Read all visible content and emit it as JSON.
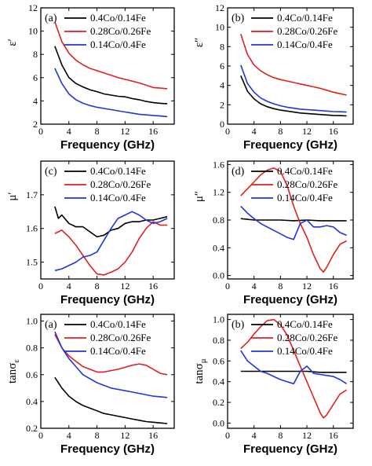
{
  "figure": {
    "colors": {
      "black": "#000000",
      "red": "#e02020",
      "blue": "#2036d8"
    }
  },
  "chart_data": [
    {
      "id": "eps_real",
      "type": "line",
      "panel_label": "(a)",
      "xlabel": "Frequency (GHz)",
      "ylabel": "ε′",
      "xlim": [
        0,
        19
      ],
      "ylim": [
        2,
        12
      ],
      "xticks": [
        0,
        4,
        8,
        12,
        16
      ],
      "yticks": [
        2,
        4,
        6,
        8,
        10,
        12
      ],
      "grid": false,
      "legend_position": "top",
      "series": [
        {
          "name": "0.4Co/0.14Fe",
          "color": "#000000",
          "x": [
            2,
            3,
            4,
            5,
            6,
            7,
            8,
            9,
            10,
            11,
            12,
            13,
            14,
            15,
            16,
            17,
            18
          ],
          "y": [
            8.7,
            7.1,
            6.0,
            5.5,
            5.2,
            4.95,
            4.8,
            4.6,
            4.5,
            4.4,
            4.35,
            4.2,
            4.1,
            3.95,
            3.85,
            3.8,
            3.75
          ]
        },
        {
          "name": "0.28Co/0.26Fe",
          "color": "#e02020",
          "x": [
            2,
            3,
            4,
            5,
            6,
            7,
            8,
            9,
            10,
            11,
            12,
            13,
            14,
            15,
            16,
            17,
            18
          ],
          "y": [
            10.8,
            9.1,
            8.1,
            7.5,
            7.1,
            6.8,
            6.6,
            6.4,
            6.2,
            6.0,
            5.85,
            5.7,
            5.55,
            5.35,
            5.15,
            5.1,
            5.05
          ]
        },
        {
          "name": "0.14Co/0.4Fe",
          "color": "#2036d8",
          "x": [
            2,
            3,
            4,
            5,
            6,
            7,
            8,
            9,
            10,
            11,
            12,
            13,
            14,
            15,
            16,
            17,
            18
          ],
          "y": [
            6.8,
            5.5,
            4.6,
            4.1,
            3.8,
            3.6,
            3.45,
            3.35,
            3.25,
            3.15,
            3.05,
            2.95,
            2.85,
            2.8,
            2.75,
            2.7,
            2.65
          ]
        }
      ]
    },
    {
      "id": "eps_imag",
      "type": "line",
      "panel_label": "(b)",
      "xlabel": "Frequency (GHz)",
      "ylabel": "ε″",
      "xlim": [
        0,
        19
      ],
      "ylim": [
        0,
        12
      ],
      "xticks": [
        0,
        4,
        8,
        12,
        16
      ],
      "yticks": [
        0,
        2,
        4,
        6,
        8,
        10,
        12
      ],
      "grid": false,
      "legend_position": "top",
      "series": [
        {
          "name": "0.4Co/0.14Fe",
          "color": "#000000",
          "x": [
            2,
            3,
            4,
            5,
            6,
            7,
            8,
            9,
            10,
            11,
            12,
            13,
            14,
            15,
            16,
            17,
            18
          ],
          "y": [
            5.0,
            3.4,
            2.6,
            2.1,
            1.8,
            1.6,
            1.45,
            1.35,
            1.25,
            1.15,
            1.1,
            1.05,
            1.0,
            0.95,
            0.9,
            0.88,
            0.85
          ]
        },
        {
          "name": "0.28Co/0.26Fe",
          "color": "#e02020",
          "x": [
            2,
            3,
            4,
            5,
            6,
            7,
            8,
            9,
            10,
            11,
            12,
            13,
            14,
            15,
            16,
            17,
            18
          ],
          "y": [
            9.3,
            7.2,
            6.1,
            5.5,
            5.1,
            4.8,
            4.6,
            4.45,
            4.3,
            4.15,
            4.0,
            3.85,
            3.7,
            3.5,
            3.3,
            3.15,
            3.0
          ]
        },
        {
          "name": "0.14Co/0.4Fe",
          "color": "#2036d8",
          "x": [
            2,
            3,
            4,
            5,
            6,
            7,
            8,
            9,
            10,
            11,
            12,
            13,
            14,
            15,
            16,
            17,
            18
          ],
          "y": [
            6.1,
            4.2,
            3.3,
            2.7,
            2.35,
            2.1,
            1.9,
            1.75,
            1.65,
            1.55,
            1.5,
            1.45,
            1.4,
            1.35,
            1.3,
            1.28,
            1.25
          ]
        }
      ]
    },
    {
      "id": "mu_real",
      "type": "line",
      "panel_label": "(c)",
      "xlabel": "Frequency (GHz)",
      "ylabel": "μ′",
      "xlim": [
        0,
        19
      ],
      "ylim": [
        1.45,
        1.8
      ],
      "xticks": [
        0,
        4,
        8,
        12,
        16
      ],
      "yticks": [
        1.5,
        1.6,
        1.7
      ],
      "grid": false,
      "legend_position": "top",
      "series": [
        {
          "name": "0.4Co/0.14Fe",
          "color": "#000000",
          "x": [
            2,
            2.5,
            3,
            4,
            5,
            6,
            7,
            8,
            9,
            10,
            11,
            12,
            13,
            14,
            15,
            16,
            17,
            18
          ],
          "y": [
            1.665,
            1.63,
            1.64,
            1.615,
            1.605,
            1.605,
            1.59,
            1.575,
            1.58,
            1.595,
            1.6,
            1.615,
            1.62,
            1.62,
            1.625,
            1.625,
            1.63,
            1.635
          ]
        },
        {
          "name": "0.28Co/0.26Fe",
          "color": "#e02020",
          "x": [
            2,
            3,
            4,
            5,
            6,
            7,
            8,
            9,
            10,
            11,
            12,
            13,
            14,
            15,
            16,
            17,
            18
          ],
          "y": [
            1.585,
            1.595,
            1.575,
            1.55,
            1.52,
            1.49,
            1.465,
            1.462,
            1.47,
            1.48,
            1.5,
            1.53,
            1.57,
            1.6,
            1.62,
            1.61,
            1.61
          ]
        },
        {
          "name": "0.14Co/0.4Fe",
          "color": "#2036d8",
          "x": [
            2,
            3,
            4,
            5,
            6,
            7,
            8,
            9,
            10,
            11,
            12,
            13,
            14,
            15,
            16,
            17,
            18
          ],
          "y": [
            1.475,
            1.48,
            1.49,
            1.5,
            1.515,
            1.52,
            1.53,
            1.565,
            1.6,
            1.63,
            1.64,
            1.65,
            1.64,
            1.625,
            1.615,
            1.62,
            1.63
          ]
        }
      ]
    },
    {
      "id": "mu_imag",
      "type": "line",
      "panel_label": "(d)",
      "xlabel": "Frequency (GHz)",
      "ylabel": "μ″",
      "xlim": [
        0,
        19
      ],
      "ylim": [
        -0.05,
        1.65
      ],
      "xticks": [
        0,
        4,
        8,
        12,
        16
      ],
      "yticks": [
        0.0,
        0.4,
        0.8,
        1.2,
        1.6
      ],
      "grid": false,
      "legend_position": "top",
      "series": [
        {
          "name": "0.4Co/0.14Fe",
          "color": "#000000",
          "x": [
            2,
            4,
            6,
            8,
            10,
            12,
            14,
            16,
            18
          ],
          "y": [
            0.82,
            0.8,
            0.8,
            0.8,
            0.79,
            0.8,
            0.79,
            0.79,
            0.79
          ]
        },
        {
          "name": "0.28Co/0.26Fe",
          "color": "#e02020",
          "x": [
            2,
            3,
            4,
            5,
            6,
            7,
            8,
            9,
            10,
            11,
            12,
            13,
            14,
            14.5,
            15,
            16,
            17,
            18
          ],
          "y": [
            1.15,
            1.25,
            1.35,
            1.45,
            1.52,
            1.55,
            1.5,
            1.3,
            1.0,
            0.75,
            0.55,
            0.3,
            0.1,
            0.05,
            0.12,
            0.3,
            0.45,
            0.5
          ]
        },
        {
          "name": "0.14Co/0.4Fe",
          "color": "#2036d8",
          "x": [
            2,
            3,
            4,
            5,
            6,
            7,
            8,
            9,
            10,
            11,
            12,
            13,
            14,
            15,
            16,
            17,
            18
          ],
          "y": [
            1.0,
            0.9,
            0.82,
            0.75,
            0.7,
            0.65,
            0.6,
            0.55,
            0.52,
            0.75,
            0.8,
            0.7,
            0.7,
            0.72,
            0.7,
            0.62,
            0.58
          ]
        }
      ]
    },
    {
      "id": "tan_eps",
      "type": "line",
      "panel_label": "(a)",
      "xlabel": "Frequency (GHz)",
      "ylabel": "tanσε",
      "ylabel_main": "tanσ",
      "ylabel_sub": "ε",
      "xlim": [
        0,
        19
      ],
      "ylim": [
        0.2,
        1.05
      ],
      "xticks": [
        0,
        4,
        8,
        12,
        16
      ],
      "yticks": [
        0.2,
        0.4,
        0.6,
        0.8,
        1.0
      ],
      "grid": false,
      "legend_position": "top",
      "series": [
        {
          "name": "0.4Co/0.14Fe",
          "color": "#000000",
          "x": [
            2,
            3,
            4,
            5,
            6,
            7,
            8,
            9,
            10,
            11,
            12,
            13,
            14,
            15,
            16,
            17,
            18
          ],
          "y": [
            0.58,
            0.5,
            0.44,
            0.4,
            0.37,
            0.35,
            0.33,
            0.31,
            0.3,
            0.29,
            0.28,
            0.27,
            0.26,
            0.25,
            0.245,
            0.24,
            0.235
          ]
        },
        {
          "name": "0.28Co/0.26Fe",
          "color": "#e02020",
          "x": [
            2,
            3,
            4,
            5,
            6,
            7,
            8,
            9,
            10,
            11,
            12,
            13,
            14,
            15,
            16,
            17,
            18
          ],
          "y": [
            0.9,
            0.8,
            0.74,
            0.7,
            0.66,
            0.64,
            0.62,
            0.62,
            0.63,
            0.64,
            0.655,
            0.67,
            0.68,
            0.67,
            0.64,
            0.61,
            0.6
          ]
        },
        {
          "name": "0.14Co/0.4Fe",
          "color": "#2036d8",
          "x": [
            2,
            3,
            4,
            5,
            6,
            7,
            8,
            9,
            10,
            11,
            12,
            13,
            14,
            15,
            16,
            17,
            18
          ],
          "y": [
            0.92,
            0.8,
            0.72,
            0.66,
            0.6,
            0.57,
            0.54,
            0.52,
            0.5,
            0.49,
            0.48,
            0.47,
            0.46,
            0.45,
            0.44,
            0.435,
            0.43
          ]
        }
      ]
    },
    {
      "id": "tan_mu",
      "type": "line",
      "panel_label": "(b)",
      "xlabel": "Frequency (GHz)",
      "ylabel": "tanσμ",
      "ylabel_main": "tanσ",
      "ylabel_sub": "μ",
      "xlim": [
        0,
        19
      ],
      "ylim": [
        -0.05,
        1.05
      ],
      "xticks": [
        0,
        4,
        8,
        12,
        16
      ],
      "yticks": [
        0.0,
        0.2,
        0.4,
        0.6,
        0.8,
        1.0
      ],
      "grid": false,
      "legend_position": "top",
      "series": [
        {
          "name": "0.4Co/0.14Fe",
          "color": "#000000",
          "x": [
            2,
            4,
            6,
            8,
            10,
            12,
            14,
            16,
            18
          ],
          "y": [
            0.5,
            0.5,
            0.5,
            0.5,
            0.5,
            0.5,
            0.49,
            0.49,
            0.49
          ]
        },
        {
          "name": "0.28Co/0.26Fe",
          "color": "#e02020",
          "x": [
            2,
            3,
            4,
            5,
            6,
            7,
            8,
            9,
            10,
            11,
            12,
            13,
            14,
            14.5,
            15,
            16,
            17,
            18
          ],
          "y": [
            0.72,
            0.78,
            0.86,
            0.93,
            0.99,
            1.0,
            0.95,
            0.85,
            0.7,
            0.55,
            0.4,
            0.25,
            0.1,
            0.05,
            0.08,
            0.18,
            0.28,
            0.32
          ]
        },
        {
          "name": "0.14Co/0.4Fe",
          "color": "#2036d8",
          "x": [
            2,
            3,
            4,
            5,
            6,
            7,
            8,
            9,
            10,
            11,
            12,
            13,
            14,
            15,
            16,
            17,
            18
          ],
          "y": [
            0.7,
            0.6,
            0.55,
            0.5,
            0.48,
            0.45,
            0.42,
            0.4,
            0.38,
            0.5,
            0.55,
            0.48,
            0.47,
            0.46,
            0.45,
            0.42,
            0.38
          ]
        }
      ]
    }
  ]
}
